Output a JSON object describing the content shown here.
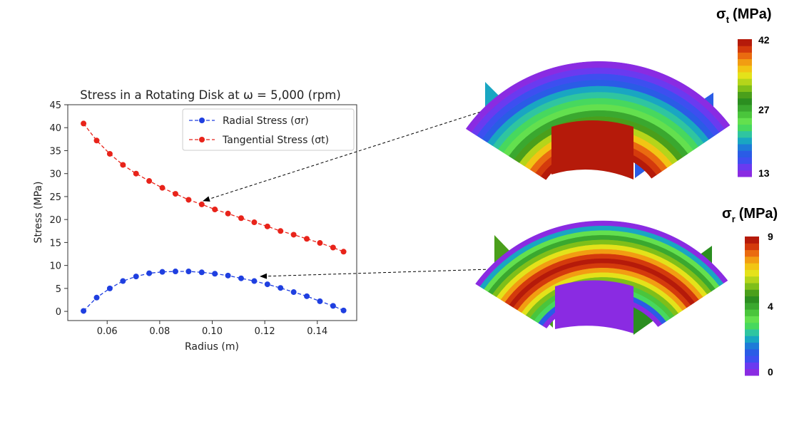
{
  "chart_data": {
    "type": "line",
    "title": "Stress in a Rotating Disk at ω = 5,000 (rpm)",
    "xlabel": "Radius (m)",
    "ylabel": "Stress (MPa)",
    "xlim": [
      0.045,
      0.155
    ],
    "ylim": [
      -2,
      45
    ],
    "x_ticks": [
      0.06,
      0.08,
      0.1,
      0.12,
      0.14
    ],
    "x_tick_labels": [
      "0.06",
      "0.08",
      "0.10",
      "0.12",
      "0.14"
    ],
    "y_ticks": [
      0,
      5,
      10,
      15,
      20,
      25,
      30,
      35,
      40,
      45
    ],
    "y_tick_labels": [
      "0",
      "5",
      "10",
      "15",
      "20",
      "25",
      "30",
      "35",
      "40",
      "45"
    ],
    "legend_position": "top-right",
    "grid": false,
    "x": [
      0.051,
      0.056,
      0.061,
      0.066,
      0.071,
      0.076,
      0.081,
      0.086,
      0.091,
      0.096,
      0.101,
      0.106,
      0.111,
      0.116,
      0.121,
      0.126,
      0.131,
      0.136,
      0.141,
      0.146,
      0.15
    ],
    "series": [
      {
        "name": "Radial Stress (σr)",
        "color": "#1f3fe0",
        "values": [
          0.1,
          3.0,
          5.0,
          6.6,
          7.6,
          8.3,
          8.6,
          8.7,
          8.7,
          8.5,
          8.2,
          7.8,
          7.2,
          6.6,
          5.9,
          5.1,
          4.2,
          3.3,
          2.2,
          1.2,
          0.2
        ]
      },
      {
        "name": "Tangential Stress (σt)",
        "color": "#e8231a",
        "values": [
          40.9,
          37.2,
          34.3,
          31.9,
          30.0,
          28.4,
          26.9,
          25.6,
          24.3,
          23.3,
          22.2,
          21.3,
          20.3,
          19.4,
          18.5,
          17.5,
          16.7,
          15.8,
          14.9,
          13.9,
          13.0
        ]
      }
    ]
  },
  "models": {
    "tangential": {
      "label_main": "σ",
      "label_sub": "t",
      "label_unit": "(MPa)",
      "ticks": [
        "42",
        "27",
        "13"
      ]
    },
    "radial": {
      "label_main": "σ",
      "label_sub": "r",
      "label_unit": "(MPa)",
      "ticks": [
        "9",
        "4",
        "0"
      ]
    }
  },
  "colormap": [
    "#8a2be2",
    "#6a3af0",
    "#3d4ff0",
    "#2a5ce6",
    "#1e7bd8",
    "#19a6c2",
    "#2fc5a0",
    "#47d85e",
    "#63e04e",
    "#4ac53c",
    "#3aa82f",
    "#2b8e20",
    "#4a9f1b",
    "#7fbf19",
    "#b5d51a",
    "#e4e21a",
    "#f2c514",
    "#f29d12",
    "#ea6b10",
    "#d43a0c",
    "#b51a0a"
  ]
}
